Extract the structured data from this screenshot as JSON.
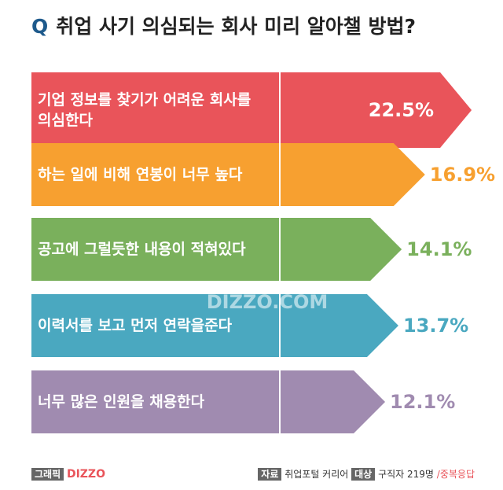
{
  "chart_data": {
    "type": "arrow-bar",
    "title_prefix": "Q",
    "title": "취업 사기 의심되는 회사 미리 알아챌 방법?",
    "categories": [
      "기업 정보를 찾기가 어려운 회사를 의심한다",
      "하는 일에 비해 연봉이 너무 높다",
      "공고에 그럴듯한 내용이 적혀있다",
      "이력서를 보고 먼저 연락을준다",
      "너무 많은 인원을 채용한다"
    ],
    "values": [
      22.5,
      16.9,
      14.1,
      13.7,
      12.1
    ],
    "value_labels": [
      "22.5%",
      "16.9%",
      "14.1%",
      "13.7%",
      "12.1%"
    ],
    "colors": [
      "#e9545a",
      "#f7a030",
      "#7ab05c",
      "#4aa8c0",
      "#a08bb0"
    ],
    "watermark": "DIZZO.COM",
    "footer": {
      "graphic_label": "그래픽",
      "brand": "DIZZO",
      "source_label": "자료",
      "source": "취업포털 커리어",
      "target_label": "대상",
      "target": "구직자 219명",
      "note": "/중복응답"
    }
  }
}
